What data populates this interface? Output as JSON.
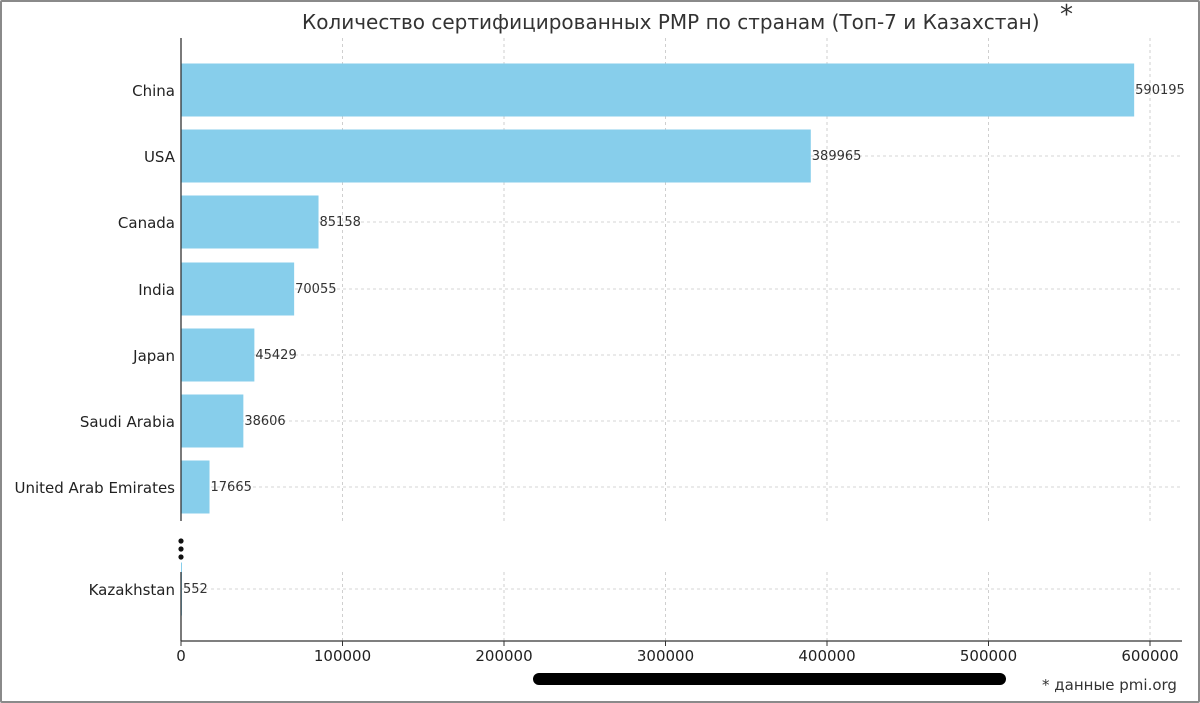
{
  "chart_data": {
    "type": "bar",
    "orientation": "horizontal",
    "title": "Количество сертифицированных PMP по странам (Топ-7 и Казахстан)",
    "title_mark": "*",
    "categories": [
      "China",
      "USA",
      "Canada",
      "India",
      "Japan",
      "Saudi Arabia",
      "United Arab Emirates",
      "Kazakhstan"
    ],
    "values": [
      590195,
      389965,
      85158,
      70055,
      45429,
      38606,
      17665,
      552
    ],
    "value_labels": [
      "590195",
      "389965",
      "85158",
      "70055",
      "45429",
      "38606",
      "17665",
      "552"
    ],
    "xlim": [
      0,
      600000
    ],
    "xticks": [
      0,
      100000,
      200000,
      300000,
      400000,
      500000,
      600000
    ],
    "xtick_labels": [
      "0",
      "100000",
      "200000",
      "300000",
      "400000",
      "500000",
      "600000"
    ],
    "gap_marker": "⋮",
    "grid": true,
    "bar_color": "#87ceeb"
  },
  "footer": {
    "source_note": "* данные pmi.org"
  }
}
